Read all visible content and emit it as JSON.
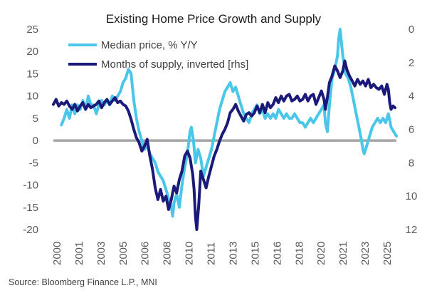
{
  "chart_data": {
    "type": "line",
    "title": "Existing Home Price Growth and Supply",
    "source": "Source: Bloomberg Finance L.P., MNI",
    "x_range": [
      2000,
      2025.6
    ],
    "x_tick_labels": [
      "2000",
      "2001",
      "2003",
      "2005",
      "2006",
      "2008",
      "2010",
      "2011",
      "2013",
      "2015",
      "2016",
      "2018",
      "2020",
      "2021",
      "2023",
      "2025"
    ],
    "y_left": {
      "range": [
        -20,
        25
      ],
      "ticks": [
        25,
        20,
        15,
        10,
        5,
        0,
        -5,
        -10,
        -15,
        -20
      ]
    },
    "y_right": {
      "range": [
        0,
        12
      ],
      "inverted": true,
      "ticks": [
        0,
        2,
        4,
        6,
        8,
        10,
        12
      ]
    },
    "zero_line": 0,
    "colors": {
      "median_price": "#4ac6e8",
      "months_supply": "#1b1a7a",
      "zero_line": "#a6a6a6"
    },
    "series": [
      {
        "name": "Median price, % Y/Y",
        "axis": "left",
        "points": [
          [
            2000.6,
            3.5
          ],
          [
            2000.8,
            5
          ],
          [
            2001.0,
            7
          ],
          [
            2001.2,
            5
          ],
          [
            2001.4,
            8
          ],
          [
            2001.6,
            6
          ],
          [
            2001.8,
            8
          ],
          [
            2002.0,
            7
          ],
          [
            2002.2,
            9
          ],
          [
            2002.4,
            7
          ],
          [
            2002.6,
            10
          ],
          [
            2002.8,
            8
          ],
          [
            2003.0,
            8
          ],
          [
            2003.2,
            6
          ],
          [
            2003.4,
            8
          ],
          [
            2003.6,
            9
          ],
          [
            2003.8,
            8
          ],
          [
            2004.0,
            9
          ],
          [
            2004.2,
            8
          ],
          [
            2004.4,
            10
          ],
          [
            2004.6,
            9
          ],
          [
            2004.8,
            10
          ],
          [
            2005.0,
            11
          ],
          [
            2005.2,
            13
          ],
          [
            2005.4,
            14
          ],
          [
            2005.6,
            16
          ],
          [
            2005.8,
            15
          ],
          [
            2005.9,
            12
          ],
          [
            2006.0,
            9
          ],
          [
            2006.2,
            5
          ],
          [
            2006.4,
            2
          ],
          [
            2006.6,
            0
          ],
          [
            2006.8,
            -2
          ],
          [
            2007.0,
            -1
          ],
          [
            2007.2,
            -3
          ],
          [
            2007.4,
            -4
          ],
          [
            2007.6,
            -5
          ],
          [
            2007.8,
            -7
          ],
          [
            2008.0,
            -8
          ],
          [
            2008.2,
            -9
          ],
          [
            2008.4,
            -11
          ],
          [
            2008.6,
            -13
          ],
          [
            2008.8,
            -15
          ],
          [
            2008.9,
            -17
          ],
          [
            2009.0,
            -14
          ],
          [
            2009.2,
            -12
          ],
          [
            2009.4,
            -15
          ],
          [
            2009.6,
            -10
          ],
          [
            2009.8,
            -6
          ],
          [
            2010.0,
            -3
          ],
          [
            2010.2,
            2
          ],
          [
            2010.3,
            3
          ],
          [
            2010.45,
            0
          ],
          [
            2010.6,
            -5
          ],
          [
            2010.8,
            -2
          ],
          [
            2011.0,
            -4
          ],
          [
            2011.2,
            -8
          ],
          [
            2011.4,
            -6
          ],
          [
            2011.6,
            -4
          ],
          [
            2011.8,
            -2
          ],
          [
            2012.0,
            1
          ],
          [
            2012.2,
            4
          ],
          [
            2012.4,
            7
          ],
          [
            2012.6,
            9
          ],
          [
            2012.8,
            11
          ],
          [
            2013.0,
            12
          ],
          [
            2013.2,
            13
          ],
          [
            2013.4,
            11
          ],
          [
            2013.6,
            12
          ],
          [
            2013.8,
            10
          ],
          [
            2014.0,
            8
          ],
          [
            2014.2,
            6
          ],
          [
            2014.4,
            5
          ],
          [
            2014.6,
            4
          ],
          [
            2014.8,
            6
          ],
          [
            2015.0,
            7
          ],
          [
            2015.2,
            8
          ],
          [
            2015.4,
            6
          ],
          [
            2015.6,
            7
          ],
          [
            2015.8,
            5
          ],
          [
            2016.0,
            6
          ],
          [
            2016.2,
            5
          ],
          [
            2016.4,
            6
          ],
          [
            2016.6,
            5
          ],
          [
            2016.8,
            7
          ],
          [
            2017.0,
            6
          ],
          [
            2017.2,
            5
          ],
          [
            2017.4,
            6
          ],
          [
            2017.6,
            5
          ],
          [
            2017.8,
            5
          ],
          [
            2018.0,
            6
          ],
          [
            2018.2,
            5
          ],
          [
            2018.4,
            4
          ],
          [
            2018.6,
            4
          ],
          [
            2018.8,
            3
          ],
          [
            2019.0,
            4
          ],
          [
            2019.2,
            5
          ],
          [
            2019.4,
            4
          ],
          [
            2019.6,
            5
          ],
          [
            2019.8,
            6
          ],
          [
            2020.0,
            7
          ],
          [
            2020.2,
            8
          ],
          [
            2020.3,
            4
          ],
          [
            2020.45,
            2
          ],
          [
            2020.6,
            8
          ],
          [
            2020.8,
            14
          ],
          [
            2021.0,
            16
          ],
          [
            2021.2,
            19
          ],
          [
            2021.3,
            23
          ],
          [
            2021.4,
            25
          ],
          [
            2021.6,
            19
          ],
          [
            2021.8,
            15
          ],
          [
            2022.0,
            14
          ],
          [
            2022.2,
            12
          ],
          [
            2022.4,
            9
          ],
          [
            2022.6,
            6
          ],
          [
            2022.8,
            3
          ],
          [
            2023.0,
            0
          ],
          [
            2023.1,
            -2
          ],
          [
            2023.2,
            -3
          ],
          [
            2023.4,
            -1
          ],
          [
            2023.6,
            1
          ],
          [
            2023.8,
            3
          ],
          [
            2024.0,
            4
          ],
          [
            2024.2,
            5
          ],
          [
            2024.4,
            4
          ],
          [
            2024.6,
            5
          ],
          [
            2024.8,
            4
          ],
          [
            2025.0,
            6
          ],
          [
            2025.2,
            3
          ],
          [
            2025.4,
            2
          ],
          [
            2025.6,
            1
          ]
        ]
      },
      {
        "name": "Months of supply, inverted [rhs]",
        "axis": "right",
        "points": [
          [
            2000.0,
            4.5
          ],
          [
            2000.2,
            4.2
          ],
          [
            2000.4,
            4.6
          ],
          [
            2000.6,
            4.4
          ],
          [
            2000.8,
            4.5
          ],
          [
            2001.0,
            4.3
          ],
          [
            2001.2,
            4.6
          ],
          [
            2001.4,
            4.8
          ],
          [
            2001.6,
            4.5
          ],
          [
            2001.8,
            4.9
          ],
          [
            2002.0,
            4.6
          ],
          [
            2002.2,
            4.4
          ],
          [
            2002.4,
            4.8
          ],
          [
            2002.6,
            4.5
          ],
          [
            2002.8,
            4.7
          ],
          [
            2003.0,
            4.6
          ],
          [
            2003.2,
            4.5
          ],
          [
            2003.4,
            4.3
          ],
          [
            2003.6,
            4.7
          ],
          [
            2003.8,
            4.4
          ],
          [
            2004.0,
            4.2
          ],
          [
            2004.2,
            4.5
          ],
          [
            2004.4,
            4.3
          ],
          [
            2004.6,
            4.1
          ],
          [
            2004.8,
            4.4
          ],
          [
            2005.0,
            4.3
          ],
          [
            2005.2,
            4.5
          ],
          [
            2005.4,
            4.6
          ],
          [
            2005.6,
            4.9
          ],
          [
            2005.8,
            5.4
          ],
          [
            2006.0,
            6.0
          ],
          [
            2006.2,
            6.5
          ],
          [
            2006.4,
            6.8
          ],
          [
            2006.6,
            7.3
          ],
          [
            2006.8,
            7.0
          ],
          [
            2007.0,
            6.6
          ],
          [
            2007.2,
            7.6
          ],
          [
            2007.4,
            8.4
          ],
          [
            2007.6,
            9.5
          ],
          [
            2007.8,
            10.2
          ],
          [
            2008.0,
            9.6
          ],
          [
            2008.2,
            10.3
          ],
          [
            2008.4,
            10.0
          ],
          [
            2008.6,
            10.8
          ],
          [
            2008.8,
            10.2
          ],
          [
            2009.0,
            9.4
          ],
          [
            2009.2,
            9.8
          ],
          [
            2009.4,
            9.0
          ],
          [
            2009.6,
            8.5
          ],
          [
            2009.8,
            7.6
          ],
          [
            2010.0,
            7.3
          ],
          [
            2010.2,
            7.7
          ],
          [
            2010.4,
            8.7
          ],
          [
            2010.5,
            9.6
          ],
          [
            2010.6,
            11.2
          ],
          [
            2010.7,
            12.0
          ],
          [
            2010.85,
            10.5
          ],
          [
            2011.0,
            8.5
          ],
          [
            2011.2,
            9.0
          ],
          [
            2011.4,
            9.5
          ],
          [
            2011.6,
            8.8
          ],
          [
            2011.8,
            8.2
          ],
          [
            2012.0,
            7.6
          ],
          [
            2012.2,
            7.2
          ],
          [
            2012.4,
            6.7
          ],
          [
            2012.6,
            6.3
          ],
          [
            2012.8,
            6.0
          ],
          [
            2013.0,
            5.6
          ],
          [
            2013.2,
            5.0
          ],
          [
            2013.4,
            4.8
          ],
          [
            2013.6,
            4.5
          ],
          [
            2013.8,
            4.9
          ],
          [
            2014.0,
            5.2
          ],
          [
            2014.2,
            5.5
          ],
          [
            2014.4,
            5.1
          ],
          [
            2014.6,
            5.0
          ],
          [
            2014.8,
            5.2
          ],
          [
            2015.0,
            5.0
          ],
          [
            2015.2,
            4.6
          ],
          [
            2015.4,
            5.0
          ],
          [
            2015.6,
            4.5
          ],
          [
            2015.8,
            5.0
          ],
          [
            2016.0,
            4.4
          ],
          [
            2016.2,
            4.7
          ],
          [
            2016.4,
            4.5
          ],
          [
            2016.6,
            4.1
          ],
          [
            2016.8,
            4.4
          ],
          [
            2017.0,
            4.0
          ],
          [
            2017.2,
            4.3
          ],
          [
            2017.4,
            4.0
          ],
          [
            2017.6,
            3.9
          ],
          [
            2017.8,
            4.3
          ],
          [
            2018.0,
            4.2
          ],
          [
            2018.2,
            4.0
          ],
          [
            2018.4,
            4.3
          ],
          [
            2018.6,
            4.2
          ],
          [
            2018.8,
            3.9
          ],
          [
            2019.0,
            4.3
          ],
          [
            2019.2,
            4.0
          ],
          [
            2019.4,
            3.9
          ],
          [
            2019.6,
            4.5
          ],
          [
            2019.8,
            4.1
          ],
          [
            2020.0,
            3.7
          ],
          [
            2020.2,
            4.2
          ],
          [
            2020.3,
            4.8
          ],
          [
            2020.45,
            4.1
          ],
          [
            2020.6,
            3.2
          ],
          [
            2020.8,
            2.8
          ],
          [
            2021.0,
            2.2
          ],
          [
            2021.2,
            2.5
          ],
          [
            2021.4,
            2.9
          ],
          [
            2021.6,
            2.5
          ],
          [
            2021.75,
            1.9
          ],
          [
            2021.9,
            2.4
          ],
          [
            2022.1,
            2.8
          ],
          [
            2022.3,
            3.1
          ],
          [
            2022.5,
            3.4
          ],
          [
            2022.7,
            3.0
          ],
          [
            2022.9,
            3.3
          ],
          [
            2023.1,
            3.1
          ],
          [
            2023.3,
            3.4
          ],
          [
            2023.5,
            3.0
          ],
          [
            2023.7,
            3.5
          ],
          [
            2023.9,
            3.3
          ],
          [
            2024.1,
            3.5
          ],
          [
            2024.3,
            3.6
          ],
          [
            2024.5,
            3.4
          ],
          [
            2024.7,
            3.9
          ],
          [
            2024.9,
            3.3
          ],
          [
            2025.0,
            3.6
          ],
          [
            2025.1,
            4.4
          ],
          [
            2025.2,
            4.8
          ],
          [
            2025.35,
            4.6
          ],
          [
            2025.5,
            4.7
          ]
        ]
      }
    ]
  }
}
